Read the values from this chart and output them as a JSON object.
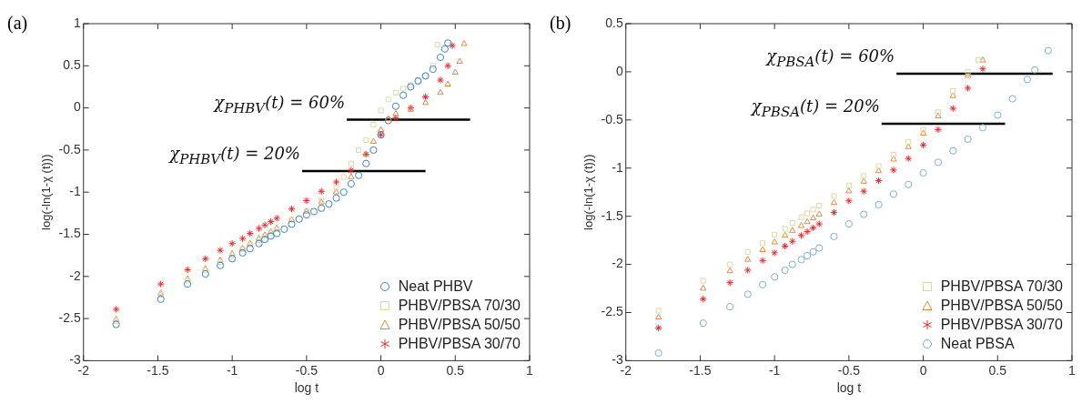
{
  "chart_data": [
    {
      "type": "scatter",
      "title": "(a)",
      "xlabel": "log t",
      "ylabel": "log(-ln(1-χ (t)))",
      "xlim": [
        -2,
        1
      ],
      "ylim": [
        -3,
        1
      ],
      "xticks": [
        -2,
        -1.5,
        -1,
        -0.5,
        0,
        0.5,
        1
      ],
      "yticks": [
        -3,
        -2.5,
        -2,
        -1.5,
        -1,
        -0.5,
        0,
        0.5,
        1
      ],
      "legend": "bottom right",
      "series": [
        {
          "name": "Neat PHBV",
          "color": "#3d85c6",
          "marker": "circle",
          "x": [
            -1.78,
            -1.48,
            -1.3,
            -1.18,
            -1.08,
            -1,
            -0.93,
            -0.88,
            -0.82,
            -0.78,
            -0.74,
            -0.7,
            -0.65,
            -0.6,
            -0.55,
            -0.5,
            -0.45,
            -0.4,
            -0.35,
            -0.3,
            -0.25,
            -0.2,
            -0.15,
            -0.1,
            -0.05,
            0,
            0.05,
            0.1,
            0.15,
            0.2,
            0.25,
            0.3,
            0.35,
            0.4,
            0.43,
            0.45
          ],
          "values": [
            -2.57,
            -2.27,
            -2.09,
            -1.97,
            -1.87,
            -1.79,
            -1.72,
            -1.67,
            -1.61,
            -1.56,
            -1.52,
            -1.49,
            -1.44,
            -1.38,
            -1.32,
            -1.27,
            -1.23,
            -1.19,
            -1.14,
            -1.07,
            -1.0,
            -0.9,
            -0.8,
            -0.66,
            -0.5,
            -0.32,
            -0.15,
            0.02,
            0.15,
            0.25,
            0.32,
            0.38,
            0.46,
            0.6,
            0.7,
            0.77
          ]
        },
        {
          "name": "PHBV/PBSA 70/30",
          "color": "#dcd8a4",
          "marker": "square",
          "x": [
            -1.78,
            -1.48,
            -1.3,
            -1.18,
            -1.08,
            -1,
            -0.93,
            -0.88,
            -0.82,
            -0.78,
            -0.74,
            -0.7,
            -0.6,
            -0.5,
            -0.4,
            -0.3,
            -0.25,
            -0.2,
            -0.15,
            -0.1,
            -0.05,
            0,
            0.05,
            0.1,
            0.15,
            0.2,
            0.25,
            0.3,
            0.35,
            0.38
          ],
          "values": [
            -2.53,
            -2.22,
            -2.05,
            -1.93,
            -1.83,
            -1.75,
            -1.68,
            -1.62,
            -1.57,
            -1.52,
            -1.48,
            -1.44,
            -1.33,
            -1.22,
            -1.1,
            -0.95,
            -0.82,
            -0.66,
            -0.5,
            -0.38,
            -0.2,
            -0.03,
            0.1,
            0.18,
            0.23,
            0.27,
            0.32,
            0.38,
            0.5,
            0.75
          ]
        },
        {
          "name": "PHBV/PBSA 50/50",
          "color": "#e08a40",
          "marker": "triangle",
          "x": [
            -1.78,
            -1.48,
            -1.3,
            -1.18,
            -1.08,
            -1,
            -0.93,
            -0.88,
            -0.82,
            -0.78,
            -0.74,
            -0.7,
            -0.6,
            -0.5,
            -0.4,
            -0.3,
            -0.2,
            -0.1,
            -0.05,
            0,
            0.05,
            0.1,
            0.2,
            0.3,
            0.4,
            0.45,
            0.5,
            0.53,
            0.56
          ],
          "values": [
            -2.51,
            -2.2,
            -2.03,
            -1.91,
            -1.81,
            -1.73,
            -1.67,
            -1.61,
            -1.55,
            -1.51,
            -1.47,
            -1.43,
            -1.33,
            -1.23,
            -1.12,
            -1.0,
            -0.82,
            -0.55,
            -0.4,
            -0.26,
            -0.13,
            -0.07,
            -0.02,
            0.06,
            0.18,
            0.28,
            0.42,
            0.55,
            0.76
          ]
        },
        {
          "name": "PHBV/PBSA 30/70",
          "color": "#e8292b",
          "marker": "cross",
          "x": [
            -1.78,
            -1.48,
            -1.3,
            -1.18,
            -1.08,
            -1,
            -0.93,
            -0.88,
            -0.82,
            -0.78,
            -0.74,
            -0.7,
            -0.6,
            -0.5,
            -0.4,
            -0.3,
            -0.2,
            -0.1,
            0,
            0.1,
            0.2,
            0.3,
            0.4,
            0.45,
            0.48
          ],
          "values": [
            -2.39,
            -2.09,
            -1.92,
            -1.79,
            -1.69,
            -1.61,
            -1.55,
            -1.49,
            -1.43,
            -1.39,
            -1.35,
            -1.31,
            -1.2,
            -1.1,
            -0.99,
            -0.88,
            -0.74,
            -0.55,
            -0.32,
            -0.12,
            0.0,
            0.13,
            0.33,
            0.5,
            0.74
          ]
        },
        {
          "type": "line",
          "color": "#000000",
          "marker": "none",
          "x": [
            -0.23,
            0.6
          ],
          "values": [
            -0.14,
            -0.14
          ]
        },
        {
          "type": "line",
          "color": "#000000",
          "marker": "none",
          "x": [
            -0.53,
            0.3
          ],
          "values": [
            -0.75,
            -0.75
          ]
        }
      ],
      "annotations": [
        {
          "text": "χ$_{PHBV}$(t) = 60%",
          "x": -0.23,
          "y": -0.14
        },
        {
          "text": "χ$_{PHBV}$(t) = 20%",
          "x": -0.53,
          "y": -0.75
        }
      ]
    },
    {
      "type": "scatter",
      "title": "(b)",
      "xlabel": "log t",
      "ylabel": "log(-ln(1-χ (t)))",
      "xlim": [
        -2,
        1
      ],
      "ylim": [
        -3,
        0.5
      ],
      "xticks": [
        -2,
        -1.5,
        -1,
        -0.5,
        0,
        0.5,
        1
      ],
      "yticks": [
        -3,
        -2.5,
        -2,
        -1.5,
        -1,
        -0.5,
        0,
        0.5
      ],
      "legend": "bottom right",
      "series": [
        {
          "name": "PHBV/PBSA 70/30",
          "color": "#dcd8a4",
          "marker": "square",
          "x": [
            -1.78,
            -1.48,
            -1.3,
            -1.18,
            -1.08,
            -1,
            -0.93,
            -0.88,
            -0.82,
            -0.78,
            -0.74,
            -0.7,
            -0.6,
            -0.5,
            -0.4,
            -0.3,
            -0.2,
            -0.1,
            0,
            0.1,
            0.2,
            0.3,
            0.37
          ],
          "values": [
            -2.48,
            -2.17,
            -2.0,
            -1.87,
            -1.78,
            -1.69,
            -1.63,
            -1.57,
            -1.51,
            -1.47,
            -1.43,
            -1.39,
            -1.29,
            -1.18,
            -1.08,
            -0.98,
            -0.86,
            -0.73,
            -0.6,
            -0.42,
            -0.2,
            0.0,
            0.12
          ]
        },
        {
          "name": "PHBV/PBSA 50/50",
          "color": "#e08a40",
          "marker": "triangle",
          "x": [
            -1.78,
            -1.48,
            -1.3,
            -1.18,
            -1.08,
            -1,
            -0.93,
            -0.88,
            -0.82,
            -0.78,
            -0.74,
            -0.7,
            -0.6,
            -0.5,
            -0.4,
            -0.3,
            -0.2,
            -0.1,
            0,
            0.1,
            0.2,
            0.3,
            0.4
          ],
          "values": [
            -2.55,
            -2.25,
            -2.07,
            -1.95,
            -1.85,
            -1.77,
            -1.7,
            -1.65,
            -1.6,
            -1.56,
            -1.52,
            -1.48,
            -1.36,
            -1.24,
            -1.14,
            -1.03,
            -0.91,
            -0.78,
            -0.64,
            -0.46,
            -0.25,
            -0.04,
            0.12
          ]
        },
        {
          "name": "PHBV/PBSA 30/70",
          "color": "#e8292b",
          "marker": "cross",
          "x": [
            -1.78,
            -1.48,
            -1.3,
            -1.18,
            -1.08,
            -1,
            -0.93,
            -0.88,
            -0.82,
            -0.78,
            -0.74,
            -0.7,
            -0.6,
            -0.5,
            -0.4,
            -0.3,
            -0.2,
            -0.1,
            0,
            0.1,
            0.2,
            0.3,
            0.4
          ],
          "values": [
            -2.66,
            -2.36,
            -2.19,
            -2.06,
            -1.96,
            -1.88,
            -1.81,
            -1.76,
            -1.7,
            -1.66,
            -1.62,
            -1.58,
            -1.46,
            -1.34,
            -1.24,
            -1.13,
            -1.02,
            -0.9,
            -0.76,
            -0.6,
            -0.38,
            -0.17,
            0.03
          ]
        },
        {
          "name": "Neat PBSA",
          "color": "#7fb0c8",
          "marker": "circle",
          "x": [
            -1.78,
            -1.48,
            -1.3,
            -1.18,
            -1.08,
            -1,
            -0.93,
            -0.88,
            -0.82,
            -0.78,
            -0.74,
            -0.7,
            -0.6,
            -0.5,
            -0.4,
            -0.3,
            -0.2,
            -0.1,
            0,
            0.1,
            0.2,
            0.3,
            0.4,
            0.5,
            0.6,
            0.7,
            0.75,
            0.84
          ],
          "values": [
            -2.92,
            -2.61,
            -2.44,
            -2.31,
            -2.21,
            -2.13,
            -2.06,
            -2.0,
            -1.95,
            -1.91,
            -1.87,
            -1.83,
            -1.71,
            -1.58,
            -1.48,
            -1.38,
            -1.27,
            -1.17,
            -1.05,
            -0.94,
            -0.82,
            -0.7,
            -0.58,
            -0.45,
            -0.28,
            -0.08,
            0.02,
            0.22
          ]
        },
        {
          "type": "line",
          "color": "#000000",
          "marker": "none",
          "x": [
            -0.18,
            0.87
          ],
          "values": [
            -0.02,
            -0.02
          ]
        },
        {
          "type": "line",
          "color": "#000000",
          "marker": "none",
          "x": [
            -0.28,
            0.55
          ],
          "values": [
            -0.54,
            -0.54
          ]
        }
      ],
      "annotations": [
        {
          "text": "χ$_{PBSA}$(t) = 60%",
          "x": -0.18,
          "y": -0.02
        },
        {
          "text": "χ$_{PBSA}$(t) = 20%",
          "x": -0.28,
          "y": -0.54
        }
      ]
    }
  ]
}
